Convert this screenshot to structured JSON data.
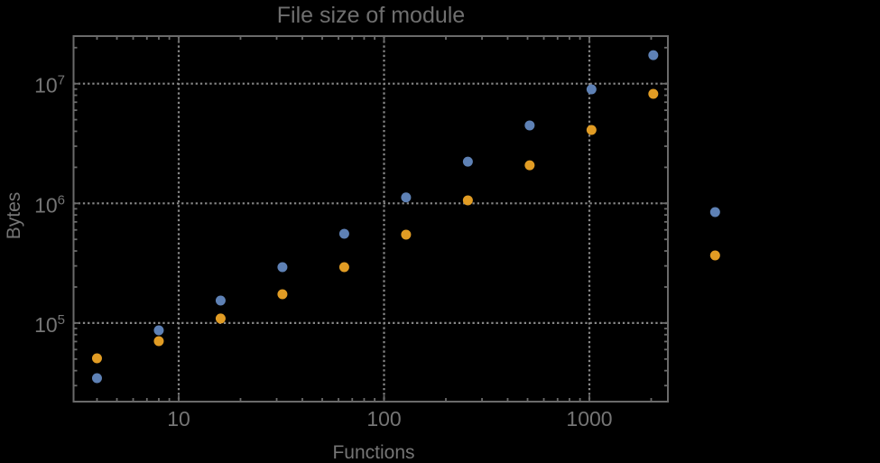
{
  "colors": {
    "background": "#000000",
    "frame": "#6a6a6a",
    "grid": "#878787",
    "text": "#757575",
    "title": "#6f6f6f",
    "series_blue": "#5e81b5",
    "series_orange": "#e19c24"
  },
  "chart_data": {
    "type": "scatter",
    "title": "File size of module",
    "xlabel": "Functions",
    "ylabel": "Bytes",
    "x_scale": "log",
    "y_scale": "log",
    "grid": "dotted",
    "legend": "none",
    "x_tick_labels": [
      "10",
      "100",
      "1000"
    ],
    "x_tick_values": [
      10,
      100,
      1000
    ],
    "y_tick_base": "10",
    "y_tick_exponents": [
      5,
      6,
      7
    ],
    "xlim": [
      3.1,
      2400
    ],
    "ylim": [
      22000,
      25000000
    ],
    "note": "points at x=4096 are drawn outside the right edge of the plot frame (unclipped)",
    "x": [
      4,
      8,
      16,
      32,
      64,
      128,
      256,
      512,
      1024,
      2048,
      4096
    ],
    "series": [
      {
        "name": "blue",
        "color": "#5e81b5",
        "values": [
          34600,
          86900,
          154000,
          293000,
          557000,
          1120000,
          2230000,
          4480000,
          8960000,
          17300000,
          845000
        ]
      },
      {
        "name": "orange",
        "color": "#e19c24",
        "values": [
          50700,
          70500,
          109000,
          174000,
          293000,
          548000,
          1060000,
          2080000,
          4100000,
          8220000,
          367000
        ]
      }
    ]
  }
}
